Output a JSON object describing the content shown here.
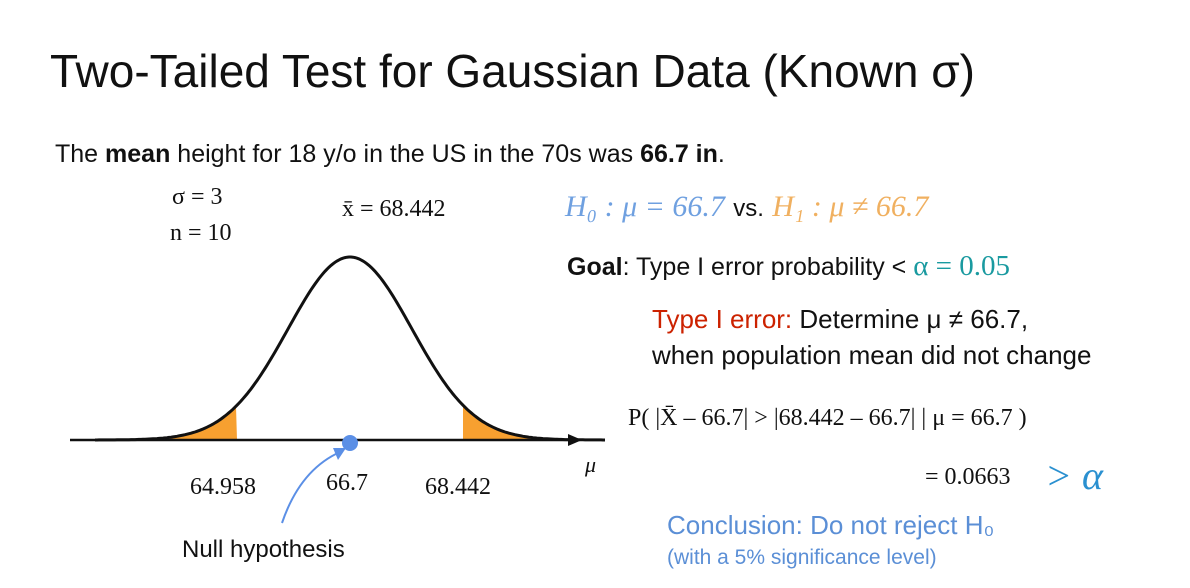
{
  "title": "Two-Tailed Test for Gaussian Data (Known σ)",
  "intro": {
    "prefix": "The ",
    "bold1": "mean",
    "middle": " height for 18 y/o in the US in the 70s was ",
    "bold2": "66.7 in",
    "suffix": "."
  },
  "givens": {
    "sigma": "σ = 3",
    "n": "n = 10",
    "xbar": "x̄ = 68.442"
  },
  "hypotheses": {
    "h0": "H₀ : μ = 66.7",
    "vs": "vs.",
    "h1": "H₁ : μ ≠ 66.7"
  },
  "goal": {
    "label": "Goal",
    "text": ": Type I error probability < ",
    "alpha": "α = 0.05"
  },
  "type1": {
    "label": "Type I error:",
    "text": " Determine μ ≠ 66.7,",
    "line2": "when population mean did not change"
  },
  "probability": {
    "expr": "P( |X̄ – 66.7| > |68.442 – 66.7| | μ = 66.7 )",
    "result": "= 0.0663",
    "compare": "> α"
  },
  "conclusion": {
    "text": "Conclusion: Do not reject H₀",
    "note": "(with a 5% significance level)"
  },
  "plot": {
    "axis_label": "μ",
    "ticks": [
      "64.958",
      "66.7",
      "68.442"
    ],
    "annotation": "Null hypothesis"
  }
}
